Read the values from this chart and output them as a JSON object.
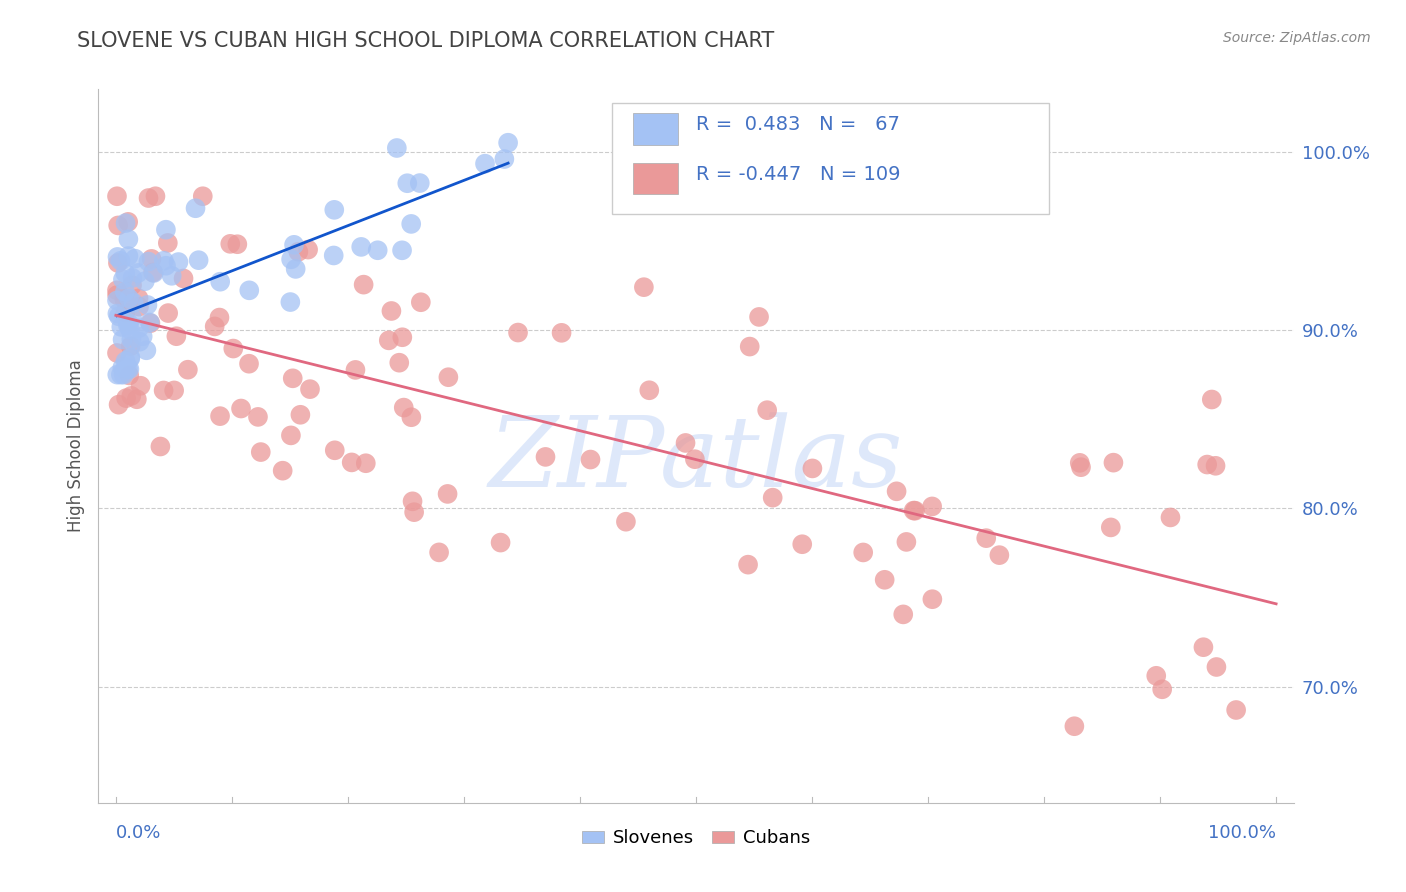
{
  "title": "SLOVENE VS CUBAN HIGH SCHOOL DIPLOMA CORRELATION CHART",
  "source": "Source: ZipAtlas.com",
  "ylabel": "High School Diploma",
  "legend_slovene": "Slovenes",
  "legend_cuban": "Cubans",
  "slovene_R": 0.483,
  "slovene_N": 67,
  "cuban_R": -0.447,
  "cuban_N": 109,
  "slovene_color": "#a4c2f4",
  "cuban_color": "#ea9999",
  "slovene_line_color": "#1155cc",
  "cuban_line_color": "#e06880",
  "right_yticks": [
    0.7,
    0.8,
    0.9,
    1.0
  ],
  "right_ytick_labels": [
    "70.0%",
    "80.0%",
    "90.0%",
    "100.0%"
  ],
  "ylim_min": 0.635,
  "ylim_max": 1.035,
  "xlim_min": -0.015,
  "xlim_max": 1.015,
  "background_color": "#ffffff",
  "title_color": "#434343",
  "watermark_text": "ZIPatlas",
  "watermark_color": "#c9daf8",
  "legend_R1_text": "R =  0.483   N =   67",
  "legend_R2_text": "R = -0.447   N = 109"
}
